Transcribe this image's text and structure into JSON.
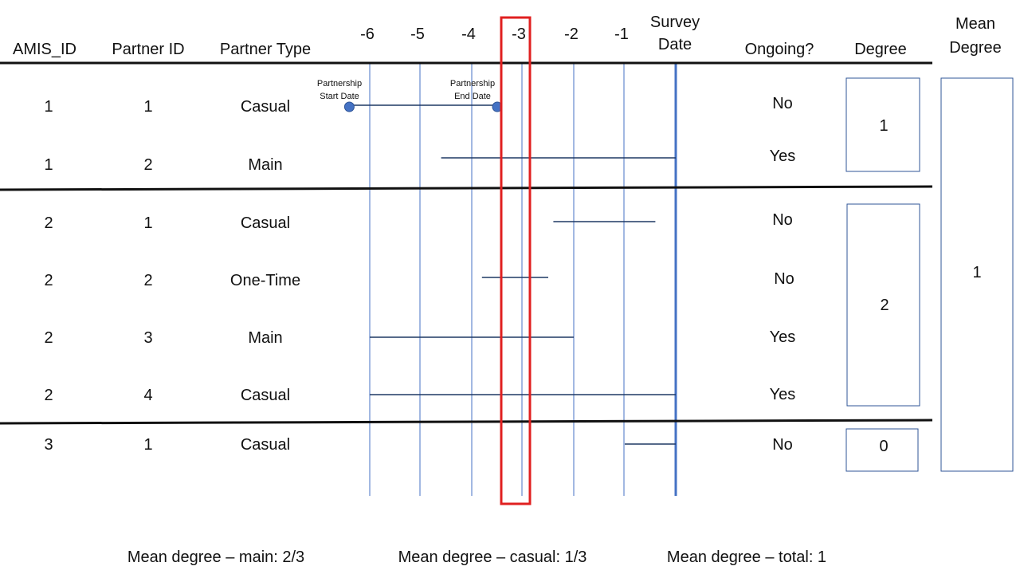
{
  "headers": {
    "amis_id": "AMIS_ID",
    "partner_id": "Partner ID",
    "partner_type": "Partner Type",
    "survey_date_line1": "Survey",
    "survey_date_line2": "Date",
    "ongoing": "Ongoing?",
    "degree": "Degree",
    "mean_degree_line1": "Mean",
    "mean_degree_line2": "Degree"
  },
  "timeline_ticks": [
    "-6",
    "-5",
    "-4",
    "-3",
    "-2",
    "-1"
  ],
  "rows": [
    {
      "amis_id": "1",
      "partner_id": "1",
      "type": "Casual",
      "ongoing": "No",
      "start": -6.4,
      "end": -3.5
    },
    {
      "amis_id": "1",
      "partner_id": "2",
      "type": "Main",
      "ongoing": "Yes",
      "start": -4.6,
      "end": 0
    },
    {
      "amis_id": "2",
      "partner_id": "1",
      "type": "Casual",
      "ongoing": "No",
      "start": -2.4,
      "end": -0.4
    },
    {
      "amis_id": "2",
      "partner_id": "2",
      "type": "One-Time",
      "ongoing": "No",
      "start": -3.8,
      "end": -2.5
    },
    {
      "amis_id": "2",
      "partner_id": "3",
      "type": "Main",
      "ongoing": "Yes",
      "start": -6,
      "end": -2
    },
    {
      "amis_id": "2",
      "partner_id": "4",
      "type": "Casual",
      "ongoing": "Yes",
      "start": -6,
      "end": 0
    },
    {
      "amis_id": "3",
      "partner_id": "1",
      "type": "Casual",
      "ongoing": "No",
      "start": -1,
      "end": 0
    }
  ],
  "annotations": {
    "start_line1": "Partnership",
    "start_line2": "Start Date",
    "end_line1": "Partnership",
    "end_line2": "End Date"
  },
  "degrees": [
    "1",
    "2",
    "0"
  ],
  "mean_degree_value": "1",
  "footer": {
    "main": "Mean degree – main: 2/3",
    "casual": "Mean degree – casual: 1/3",
    "total": "Mean degree – total: 1"
  },
  "colors": {
    "grid": "#4472C4",
    "survey": "#4472C4",
    "partnership": "#1F3864",
    "point": "#4472C4",
    "highlight": "#E02020",
    "box": "#2F5597",
    "divider": "#111111"
  }
}
